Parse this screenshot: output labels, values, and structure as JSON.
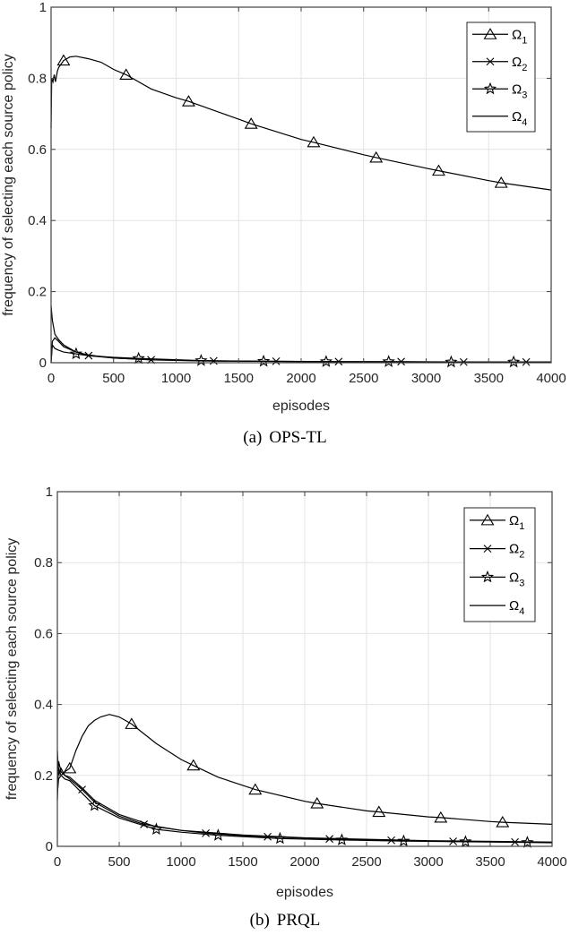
{
  "chart_data": [
    {
      "id": "a",
      "type": "line",
      "caption_tag": "(a)",
      "caption_title": "OPS-TL",
      "xlabel": "episodes",
      "ylabel": "frequency of selecting each source policy",
      "xlim": [
        0,
        4000
      ],
      "ylim": [
        0,
        1
      ],
      "xticks": [
        0,
        500,
        1000,
        1500,
        2000,
        2500,
        3000,
        3500,
        4000
      ],
      "yticks": [
        0,
        0.2,
        0.4,
        0.6,
        0.8,
        1
      ],
      "ytick_labels": [
        "0",
        "0.2",
        "0.4",
        "0.6",
        "0.8",
        "1"
      ],
      "grid": true,
      "legend_position": "upper right",
      "series": [
        {
          "name": "Ω1",
          "base": "Ω",
          "sub": "1",
          "marker": "triangle",
          "x": [
            0,
            5,
            15,
            25,
            35,
            50,
            60,
            80,
            100,
            150,
            200,
            300,
            400,
            500,
            600,
            800,
            1000,
            1100,
            1500,
            1600,
            2000,
            2100,
            2500,
            2600,
            3000,
            3100,
            3500,
            3600,
            4000
          ],
          "y": [
            0.66,
            0.8,
            0.79,
            0.81,
            0.79,
            0.82,
            0.83,
            0.84,
            0.85,
            0.86,
            0.862,
            0.855,
            0.845,
            0.825,
            0.81,
            0.77,
            0.745,
            0.735,
            0.685,
            0.672,
            0.628,
            0.62,
            0.585,
            0.577,
            0.547,
            0.54,
            0.512,
            0.506,
            0.486
          ],
          "marker_x": [
            100,
            600,
            1100,
            1600,
            2100,
            2600,
            3100,
            3600
          ]
        },
        {
          "name": "Ω2",
          "base": "Ω",
          "sub": "2",
          "marker": "x",
          "x": [
            0,
            10,
            30,
            60,
            100,
            200,
            300,
            500,
            800,
            1300,
            1800,
            2300,
            2800,
            3300,
            3800,
            4000
          ],
          "y": [
            0.0,
            0.06,
            0.07,
            0.06,
            0.045,
            0.03,
            0.02,
            0.013,
            0.008,
            0.005,
            0.004,
            0.003,
            0.003,
            0.002,
            0.002,
            0.002
          ],
          "marker_x": [
            300,
            800,
            1300,
            1800,
            2300,
            2800,
            3300,
            3800
          ]
        },
        {
          "name": "Ω3",
          "base": "Ω",
          "sub": "3",
          "marker": "star",
          "x": [
            0,
            10,
            30,
            60,
            100,
            200,
            300,
            500,
            700,
            1200,
            1700,
            2200,
            2700,
            3200,
            3700,
            4000
          ],
          "y": [
            0.0,
            0.05,
            0.04,
            0.035,
            0.03,
            0.025,
            0.02,
            0.015,
            0.012,
            0.006,
            0.004,
            0.003,
            0.003,
            0.002,
            0.002,
            0.002
          ],
          "marker_x": [
            200,
            700,
            1200,
            1700,
            2200,
            2700,
            3200,
            3700
          ]
        },
        {
          "name": "Ω4",
          "base": "Ω",
          "sub": "4",
          "marker": "none",
          "x": [
            0,
            10,
            30,
            60,
            100,
            200,
            300,
            500,
            800,
            1200,
            2000,
            3000,
            4000
          ],
          "y": [
            0.16,
            0.12,
            0.08,
            0.065,
            0.05,
            0.03,
            0.022,
            0.013,
            0.008,
            0.005,
            0.003,
            0.002,
            0.002
          ],
          "marker_x": []
        }
      ]
    },
    {
      "id": "b",
      "type": "line",
      "caption_tag": "(b)",
      "caption_title": "PRQL",
      "xlabel": "episodes",
      "ylabel": "frequency of selecting each source policy",
      "xlim": [
        0,
        4000
      ],
      "ylim": [
        0,
        1
      ],
      "xticks": [
        0,
        500,
        1000,
        1500,
        2000,
        2500,
        3000,
        3500,
        4000
      ],
      "yticks": [
        0,
        0.2,
        0.4,
        0.6,
        0.8,
        1
      ],
      "ytick_labels": [
        "0",
        "0.2",
        "0.4",
        "0.6",
        "0.8",
        "1"
      ],
      "grid": true,
      "legend_position": "upper right",
      "series": [
        {
          "name": "Ω1",
          "base": "Ω",
          "sub": "1",
          "marker": "triangle",
          "x": [
            0,
            10,
            30,
            60,
            100,
            150,
            200,
            250,
            300,
            350,
            420,
            500,
            600,
            800,
            1000,
            1100,
            1300,
            1600,
            2000,
            2100,
            2500,
            2600,
            3000,
            3100,
            3500,
            3600,
            4000
          ],
          "y": [
            0.2,
            0.22,
            0.2,
            0.21,
            0.22,
            0.27,
            0.31,
            0.34,
            0.355,
            0.365,
            0.372,
            0.365,
            0.345,
            0.29,
            0.245,
            0.228,
            0.195,
            0.16,
            0.127,
            0.121,
            0.1,
            0.097,
            0.083,
            0.081,
            0.07,
            0.068,
            0.062
          ],
          "marker_x": [
            100,
            600,
            1100,
            1600,
            2100,
            2600,
            3100,
            3600
          ]
        },
        {
          "name": "Ω2",
          "base": "Ω",
          "sub": "2",
          "marker": "x",
          "x": [
            0,
            10,
            30,
            60,
            100,
            200,
            300,
            500,
            700,
            1000,
            1200,
            1500,
            2000,
            2200,
            2700,
            3200,
            3700,
            4000
          ],
          "y": [
            0.27,
            0.2,
            0.22,
            0.2,
            0.19,
            0.16,
            0.125,
            0.085,
            0.062,
            0.045,
            0.037,
            0.03,
            0.023,
            0.021,
            0.017,
            0.014,
            0.012,
            0.011
          ],
          "marker_x": [
            200,
            700,
            1200,
            1700,
            2200,
            2700,
            3200,
            3700
          ]
        },
        {
          "name": "Ω3",
          "base": "Ω",
          "sub": "3",
          "marker": "star",
          "x": [
            0,
            10,
            30,
            60,
            100,
            200,
            300,
            500,
            800,
            1000,
            1300,
            1800,
            2300,
            2800,
            3300,
            3800,
            4000
          ],
          "y": [
            0.15,
            0.19,
            0.2,
            0.19,
            0.185,
            0.15,
            0.115,
            0.08,
            0.048,
            0.04,
            0.031,
            0.022,
            0.018,
            0.015,
            0.013,
            0.011,
            0.01
          ],
          "marker_x": [
            300,
            800,
            1300,
            1800,
            2300,
            2800,
            3300,
            3800
          ]
        },
        {
          "name": "Ω4",
          "base": "Ω",
          "sub": "4",
          "marker": "none",
          "x": [
            0,
            10,
            30,
            60,
            100,
            200,
            300,
            500,
            800,
            1000,
            1500,
            2000,
            3000,
            4000
          ],
          "y": [
            0.13,
            0.24,
            0.21,
            0.2,
            0.195,
            0.165,
            0.13,
            0.09,
            0.055,
            0.045,
            0.032,
            0.024,
            0.016,
            0.012
          ],
          "marker_x": []
        }
      ]
    }
  ],
  "figures": {
    "a": {
      "caption_tag": "(a)",
      "caption_title": "OPS-TL"
    },
    "b": {
      "caption_tag": "(b)",
      "caption_title": "PRQL"
    }
  }
}
